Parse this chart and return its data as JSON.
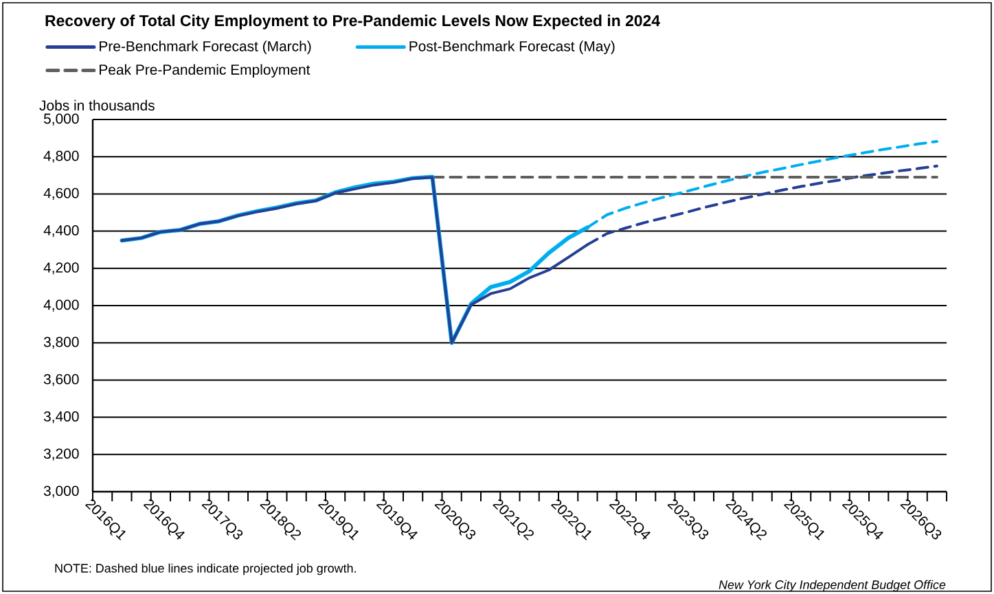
{
  "chart_data": {
    "type": "line",
    "title": "Recovery of Total City Employment to Pre-Pandemic Levels Now Expected in 2024",
    "ylabel": "Jobs in thousands",
    "annotations": [
      "NOTE: Dashed blue lines indicate projected job growth.",
      "New York City Independent Budget Office"
    ],
    "categories": [
      "2016Q1",
      null,
      null,
      "2016Q4",
      null,
      null,
      "2017Q3",
      null,
      null,
      "2018Q2",
      null,
      null,
      "2019Q1",
      null,
      null,
      "2019Q4",
      null,
      null,
      "2020Q3",
      null,
      null,
      "2021Q2",
      null,
      null,
      "2022Q1",
      null,
      null,
      "2022Q4",
      null,
      null,
      "2023Q3",
      null,
      null,
      "2024Q2",
      null,
      null,
      "2025Q1",
      null,
      null,
      "2025Q4",
      null,
      null,
      "2026Q3",
      null
    ],
    "series": [
      {
        "name": "Pre-Benchmark Forecast (March)",
        "color": "#253f94",
        "line_style": "solid",
        "values": [
          null,
          4350,
          4363,
          4396,
          4406,
          4439,
          4453,
          4483,
          4505,
          4523,
          4547,
          4563,
          4605,
          4627,
          4648,
          4662,
          4683,
          4689,
          3800,
          4005,
          4064,
          4090,
          4149,
          4191,
          4259,
          4328,
          null,
          null,
          null,
          null,
          null,
          null,
          null,
          null,
          null,
          null,
          null,
          null,
          null,
          null,
          null,
          null,
          null,
          null
        ]
      },
      {
        "name": "Post-Benchmark Forecast (May)",
        "color": "#00aeef",
        "line_style": "solid",
        "values": [
          null,
          4350,
          4363,
          4396,
          4406,
          4439,
          4453,
          4485,
          4508,
          4527,
          4550,
          4565,
          4608,
          4635,
          4655,
          4665,
          4685,
          4692,
          3800,
          4010,
          4099,
          4127,
          4185,
          4283,
          4363,
          4420,
          null,
          null,
          null,
          null,
          null,
          null,
          null,
          null,
          null,
          null,
          null,
          null,
          null,
          null,
          null,
          null,
          null,
          null
        ]
      },
      {
        "name": "Peak Pre-Pandemic Employment",
        "color": "#5f5f5f",
        "line_style": "dashed",
        "values": [
          null,
          null,
          null,
          null,
          null,
          null,
          null,
          null,
          null,
          null,
          null,
          null,
          null,
          null,
          null,
          null,
          null,
          4690,
          4690,
          4690,
          4690,
          4690,
          4690,
          4690,
          4690,
          4690,
          4690,
          4690,
          4690,
          4690,
          4690,
          4690,
          4690,
          4690,
          4690,
          4690,
          4690,
          4690,
          4690,
          4690,
          4690,
          4690,
          4690,
          4690
        ]
      },
      {
        "color": "#253f94",
        "line_style": "dashed",
        "values": [
          null,
          null,
          null,
          null,
          null,
          null,
          null,
          null,
          null,
          null,
          null,
          null,
          null,
          null,
          null,
          null,
          null,
          null,
          null,
          null,
          null,
          null,
          null,
          null,
          null,
          4328,
          4387,
          4418,
          4448,
          4473,
          4499,
          4527,
          4552,
          4576,
          4598,
          4620,
          4640,
          4659,
          4675,
          4694,
          4708,
          4723,
          4736,
          4750
        ]
      },
      {
        "color": "#00aeef",
        "line_style": "dashed",
        "values": [
          null,
          null,
          null,
          null,
          null,
          null,
          null,
          null,
          null,
          null,
          null,
          null,
          null,
          null,
          null,
          null,
          null,
          null,
          null,
          null,
          null,
          null,
          null,
          null,
          null,
          4420,
          4488,
          4525,
          4556,
          4585,
          4611,
          4639,
          4666,
          4692,
          4716,
          4736,
          4758,
          4778,
          4798,
          4817,
          4835,
          4851,
          4868,
          4882
        ]
      }
    ],
    "ylim": [
      3000,
      5000
    ],
    "yticks": [
      {
        "value": 3000,
        "label": "3,000"
      },
      {
        "value": 3200,
        "label": "3,200"
      },
      {
        "value": 3400,
        "label": "3,400"
      },
      {
        "value": 3600,
        "label": "3,600"
      },
      {
        "value": 3800,
        "label": "3,800"
      },
      {
        "value": 4000,
        "label": "4,000"
      },
      {
        "value": 4200,
        "label": "4,200"
      },
      {
        "value": 4400,
        "label": "4,400"
      },
      {
        "value": 4600,
        "label": "4,600"
      },
      {
        "value": 4800,
        "label": "4,800"
      },
      {
        "value": 5000,
        "label": "5,000"
      }
    ],
    "grid": "y",
    "legend": "top left",
    "marker": "none"
  }
}
